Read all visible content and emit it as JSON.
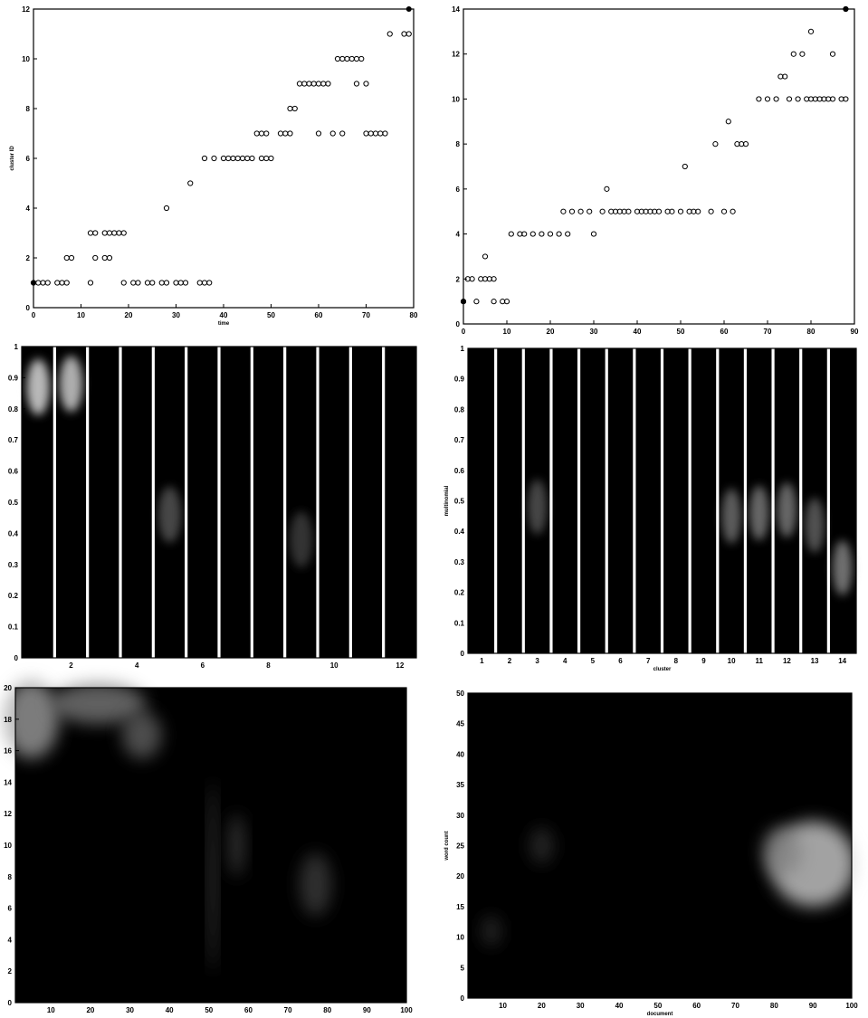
{
  "chart_data": [
    {
      "id": "scatter-left",
      "type": "scatter",
      "xlabel": "time",
      "ylabel": "cluster ID",
      "xlim": [
        0,
        80
      ],
      "ylim": [
        0,
        12
      ],
      "xticks": [
        0,
        10,
        20,
        30,
        40,
        50,
        60,
        70,
        80
      ],
      "yticks": [
        0,
        2,
        4,
        6,
        8,
        10,
        12
      ],
      "grid": false,
      "filled_points": [
        [
          0,
          1
        ],
        [
          79,
          12
        ]
      ],
      "points": [
        [
          0,
          1
        ],
        [
          1,
          1
        ],
        [
          2,
          1
        ],
        [
          3,
          1
        ],
        [
          5,
          1
        ],
        [
          6,
          1
        ],
        [
          7,
          1
        ],
        [
          7,
          2
        ],
        [
          8,
          2
        ],
        [
          12,
          1
        ],
        [
          12,
          3
        ],
        [
          13,
          2
        ],
        [
          13,
          3
        ],
        [
          15,
          2
        ],
        [
          15,
          3
        ],
        [
          16,
          2
        ],
        [
          16,
          3
        ],
        [
          17,
          3
        ],
        [
          18,
          3
        ],
        [
          19,
          1
        ],
        [
          19,
          3
        ],
        [
          21,
          1
        ],
        [
          22,
          1
        ],
        [
          24,
          1
        ],
        [
          25,
          1
        ],
        [
          27,
          1
        ],
        [
          28,
          1
        ],
        [
          28,
          4
        ],
        [
          30,
          1
        ],
        [
          31,
          1
        ],
        [
          32,
          1
        ],
        [
          33,
          5
        ],
        [
          35,
          1
        ],
        [
          36,
          1
        ],
        [
          36,
          6
        ],
        [
          37,
          1
        ],
        [
          38,
          6
        ],
        [
          40,
          6
        ],
        [
          41,
          6
        ],
        [
          42,
          6
        ],
        [
          43,
          6
        ],
        [
          44,
          6
        ],
        [
          45,
          6
        ],
        [
          46,
          6
        ],
        [
          47,
          7
        ],
        [
          48,
          6
        ],
        [
          48,
          7
        ],
        [
          49,
          6
        ],
        [
          49,
          7
        ],
        [
          50,
          6
        ],
        [
          52,
          7
        ],
        [
          53,
          7
        ],
        [
          54,
          7
        ],
        [
          54,
          8
        ],
        [
          55,
          8
        ],
        [
          56,
          9
        ],
        [
          57,
          9
        ],
        [
          58,
          9
        ],
        [
          59,
          9
        ],
        [
          60,
          7
        ],
        [
          60,
          9
        ],
        [
          61,
          9
        ],
        [
          62,
          9
        ],
        [
          63,
          7
        ],
        [
          64,
          10
        ],
        [
          65,
          7
        ],
        [
          65,
          10
        ],
        [
          66,
          10
        ],
        [
          67,
          10
        ],
        [
          68,
          9
        ],
        [
          68,
          10
        ],
        [
          69,
          10
        ],
        [
          70,
          7
        ],
        [
          70,
          9
        ],
        [
          71,
          7
        ],
        [
          72,
          7
        ],
        [
          73,
          7
        ],
        [
          74,
          7
        ],
        [
          75,
          11
        ],
        [
          78,
          11
        ],
        [
          79,
          11
        ]
      ]
    },
    {
      "id": "scatter-right",
      "type": "scatter",
      "xlabel": "",
      "ylabel": "",
      "xlim": [
        0,
        90
      ],
      "ylim": [
        0,
        14
      ],
      "xticks": [
        0,
        10,
        20,
        30,
        40,
        50,
        60,
        70,
        80,
        90
      ],
      "yticks": [
        0,
        2,
        4,
        6,
        8,
        10,
        12,
        14
      ],
      "grid": false,
      "filled_points": [
        [
          0,
          1
        ],
        [
          88,
          14
        ]
      ],
      "points": [
        [
          0,
          1
        ],
        [
          1,
          2
        ],
        [
          2,
          2
        ],
        [
          3,
          1
        ],
        [
          4,
          2
        ],
        [
          5,
          2
        ],
        [
          5,
          3
        ],
        [
          6,
          2
        ],
        [
          7,
          2
        ],
        [
          7,
          1
        ],
        [
          9,
          1
        ],
        [
          10,
          1
        ],
        [
          11,
          4
        ],
        [
          13,
          4
        ],
        [
          14,
          4
        ],
        [
          16,
          4
        ],
        [
          18,
          4
        ],
        [
          20,
          4
        ],
        [
          22,
          4
        ],
        [
          23,
          5
        ],
        [
          24,
          4
        ],
        [
          25,
          5
        ],
        [
          27,
          5
        ],
        [
          29,
          5
        ],
        [
          30,
          4
        ],
        [
          32,
          5
        ],
        [
          33,
          6
        ],
        [
          34,
          5
        ],
        [
          35,
          5
        ],
        [
          36,
          5
        ],
        [
          37,
          5
        ],
        [
          38,
          5
        ],
        [
          40,
          5
        ],
        [
          41,
          5
        ],
        [
          42,
          5
        ],
        [
          43,
          5
        ],
        [
          44,
          5
        ],
        [
          45,
          5
        ],
        [
          47,
          5
        ],
        [
          48,
          5
        ],
        [
          50,
          5
        ],
        [
          51,
          7
        ],
        [
          52,
          5
        ],
        [
          53,
          5
        ],
        [
          54,
          5
        ],
        [
          57,
          5
        ],
        [
          58,
          8
        ],
        [
          60,
          5
        ],
        [
          61,
          9
        ],
        [
          62,
          5
        ],
        [
          63,
          8
        ],
        [
          64,
          8
        ],
        [
          65,
          8
        ],
        [
          68,
          10
        ],
        [
          70,
          10
        ],
        [
          72,
          10
        ],
        [
          73,
          11
        ],
        [
          74,
          11
        ],
        [
          75,
          10
        ],
        [
          76,
          12
        ],
        [
          77,
          10
        ],
        [
          78,
          12
        ],
        [
          79,
          10
        ],
        [
          80,
          13
        ],
        [
          80,
          10
        ],
        [
          81,
          10
        ],
        [
          82,
          10
        ],
        [
          83,
          10
        ],
        [
          84,
          10
        ],
        [
          85,
          12
        ],
        [
          85,
          10
        ],
        [
          87,
          10
        ],
        [
          88,
          10
        ],
        [
          88,
          14
        ]
      ]
    },
    {
      "id": "bars-left",
      "type": "heatmap",
      "xlabel": "",
      "ylabel": "",
      "xlim": [
        0.5,
        12.5
      ],
      "ylim": [
        0,
        1
      ],
      "xticks": [
        2,
        4,
        6,
        8,
        10,
        12
      ],
      "yticks": [
        0,
        0.1,
        0.2,
        0.3,
        0.4,
        0.5,
        0.6,
        0.7,
        0.8,
        0.9,
        1
      ],
      "columns": 12,
      "blobs": [
        {
          "column": 1,
          "y": 0.87,
          "intensity": 0.9
        },
        {
          "column": 2,
          "y": 0.88,
          "intensity": 0.85
        },
        {
          "column": 5,
          "y": 0.46,
          "intensity": 0.35
        },
        {
          "column": 9,
          "y": 0.38,
          "intensity": 0.25
        }
      ]
    },
    {
      "id": "bars-right",
      "type": "heatmap",
      "xlabel": "cluster",
      "ylabel": "multinomial",
      "xlim": [
        0.5,
        14.5
      ],
      "ylim": [
        0,
        1
      ],
      "xticks": [
        1,
        2,
        3,
        4,
        5,
        6,
        7,
        8,
        9,
        10,
        11,
        12,
        13,
        14
      ],
      "yticks": [
        0,
        0.1,
        0.2,
        0.3,
        0.4,
        0.5,
        0.6,
        0.7,
        0.8,
        0.9,
        1
      ],
      "columns": 14,
      "blobs": [
        {
          "column": 3,
          "y": 0.48,
          "intensity": 0.35
        },
        {
          "column": 10,
          "y": 0.45,
          "intensity": 0.45
        },
        {
          "column": 11,
          "y": 0.46,
          "intensity": 0.5
        },
        {
          "column": 12,
          "y": 0.47,
          "intensity": 0.5
        },
        {
          "column": 13,
          "y": 0.42,
          "intensity": 0.4
        },
        {
          "column": 14,
          "y": 0.28,
          "intensity": 0.55
        }
      ]
    },
    {
      "id": "heat-left",
      "type": "heatmap",
      "xlabel": "",
      "ylabel": "",
      "xlim": [
        1,
        100
      ],
      "ylim": [
        0,
        20
      ],
      "xticks": [
        10,
        20,
        30,
        40,
        50,
        60,
        70,
        80,
        90,
        100
      ],
      "yticks": [
        0,
        2,
        4,
        6,
        8,
        10,
        12,
        14,
        16,
        18,
        20
      ],
      "blobs": [
        {
          "x": 5,
          "y": 18,
          "rx": 7,
          "ry": 2.5,
          "intensity": 0.65
        },
        {
          "x": 22,
          "y": 19,
          "rx": 12,
          "ry": 1.3,
          "intensity": 0.5
        },
        {
          "x": 33,
          "y": 17,
          "rx": 5,
          "ry": 1.5,
          "intensity": 0.4
        },
        {
          "x": 51,
          "y": 8,
          "rx": 1,
          "ry": 6,
          "intensity": 0.3
        },
        {
          "x": 57,
          "y": 10,
          "rx": 2,
          "ry": 2,
          "intensity": 0.25
        },
        {
          "x": 77,
          "y": 7.5,
          "rx": 4,
          "ry": 2,
          "intensity": 0.25
        }
      ]
    },
    {
      "id": "heat-right",
      "type": "heatmap",
      "xlabel": "document",
      "ylabel": "word count",
      "xlim": [
        1,
        100
      ],
      "ylim": [
        0,
        50
      ],
      "xticks": [
        10,
        20,
        30,
        40,
        50,
        60,
        70,
        80,
        90,
        100
      ],
      "yticks": [
        0,
        5,
        10,
        15,
        20,
        25,
        30,
        35,
        40,
        45,
        50
      ],
      "blobs": [
        {
          "x": 90,
          "y": 22,
          "rx": 11,
          "ry": 7,
          "intensity": 0.85
        },
        {
          "x": 82,
          "y": 24,
          "rx": 5,
          "ry": 4,
          "intensity": 0.5
        },
        {
          "x": 20,
          "y": 25,
          "rx": 3,
          "ry": 3,
          "intensity": 0.2
        },
        {
          "x": 7,
          "y": 11,
          "rx": 2.5,
          "ry": 2.5,
          "intensity": 0.2
        }
      ]
    }
  ]
}
